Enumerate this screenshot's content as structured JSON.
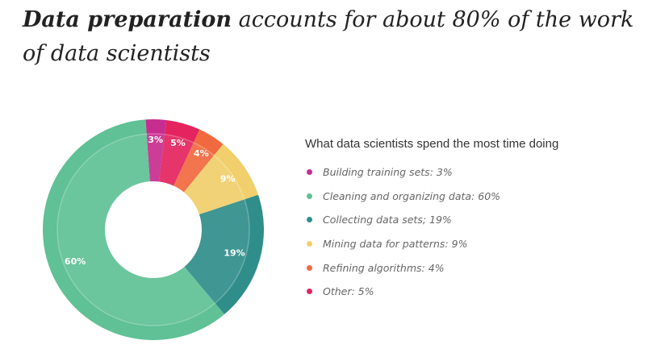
{
  "headline": {
    "bold": "Data preparation",
    "rest": " accounts for about 80% of the work of data scientists"
  },
  "chart_data": {
    "type": "pie",
    "variant": "donut",
    "title": "What data scientists spend the most time doing",
    "categories": [
      "Building training sets",
      "Cleaning and organizing data",
      "Collecting data sets",
      "Mining data for patterns",
      "Refining algorithms",
      "Other"
    ],
    "values": [
      3,
      60,
      19,
      9,
      4,
      5
    ],
    "unit": "%",
    "slice_labels": [
      "3%",
      "60%",
      "19%",
      "9%",
      "4%",
      "5%"
    ],
    "legend_entries": [
      "Building training sets: 3%",
      "Cleaning and organizing data: 60%",
      "Collecting data sets; 19%",
      "Mining data for patterns: 9%",
      "Refining algorithms: 4%",
      "Other: 5%"
    ],
    "colors": [
      "#c72d8f",
      "#5fc195",
      "#2f8e8a",
      "#f1cf6c",
      "#f16a3f",
      "#e3245e"
    ],
    "legend_placement": "right"
  }
}
